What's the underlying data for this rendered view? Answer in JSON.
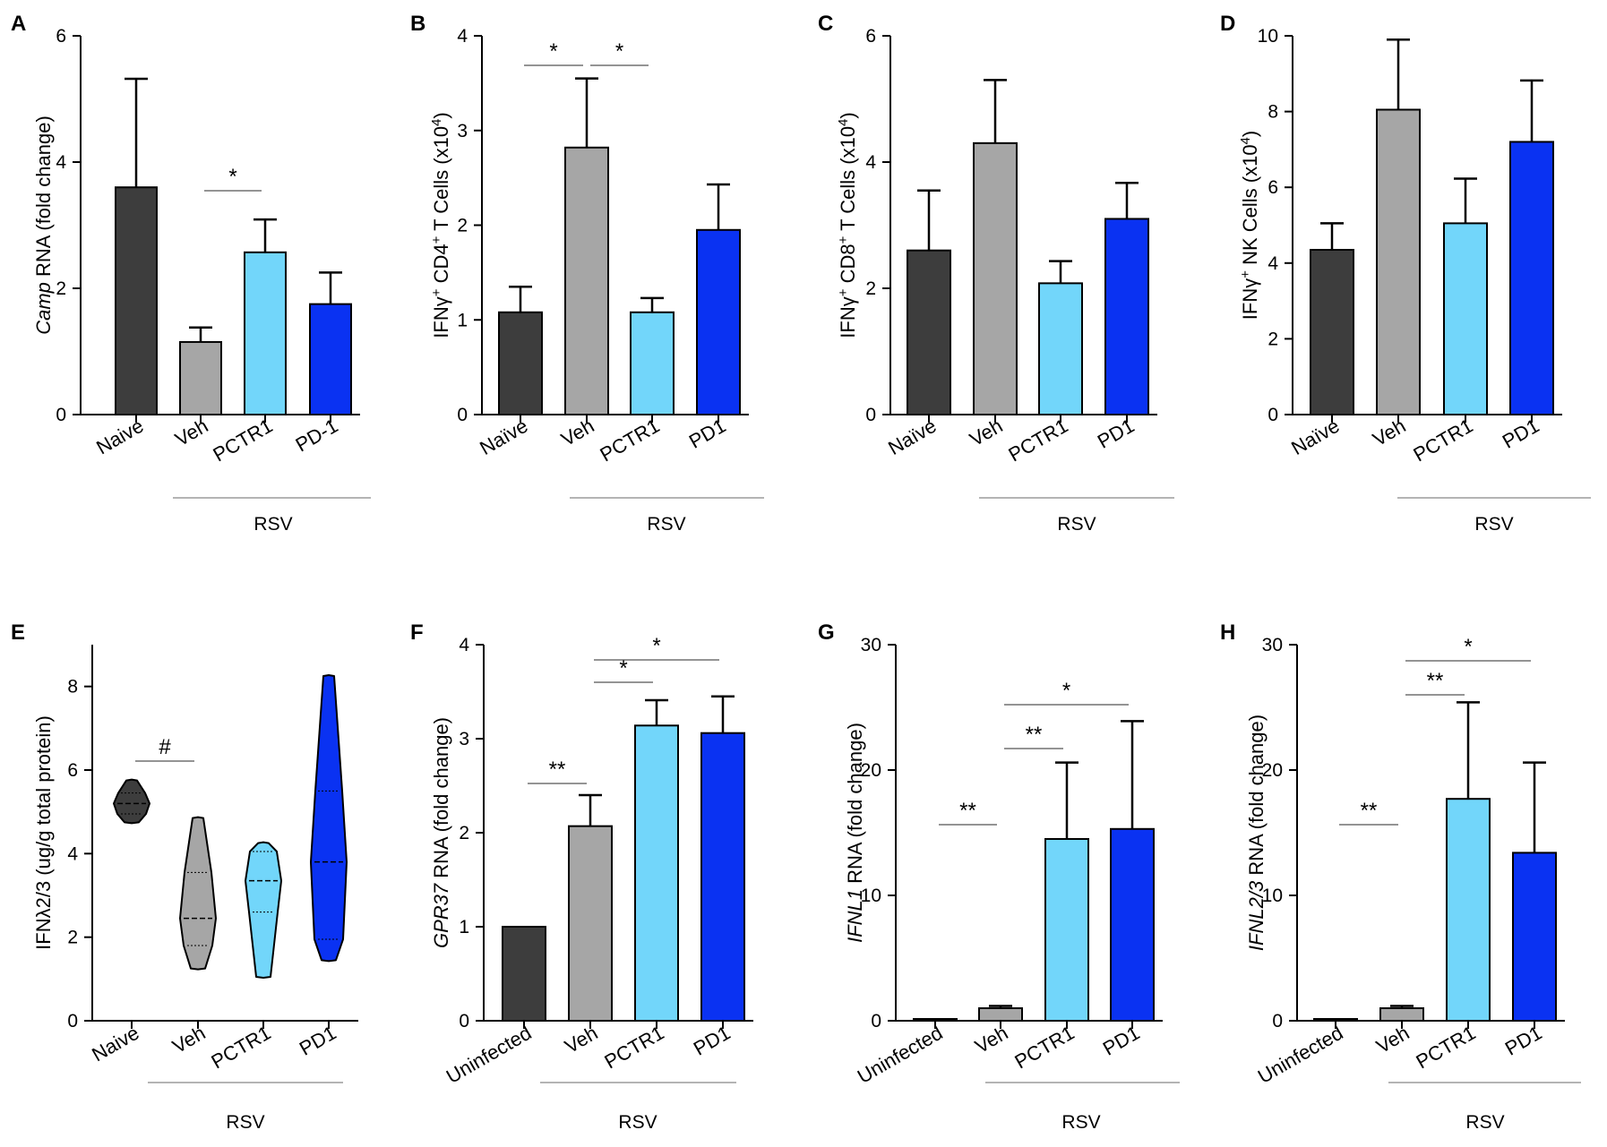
{
  "figure": {
    "colors": {
      "naive": "#3d3d3d",
      "veh": "#a6a6a6",
      "pctr1": "#72d6fa",
      "pd1": "#0a32f2"
    }
  },
  "chart_data": [
    {
      "panel": "A",
      "type": "bar",
      "ylabel_italic": "Camp",
      "ylabel_rest": " RNA (fold change)",
      "ylim": [
        0,
        6
      ],
      "yticks": [
        "0",
        "2",
        "4",
        "6"
      ],
      "categories": [
        "Naive",
        "Veh",
        "PCTR1",
        "PD-1"
      ],
      "values": [
        3.6,
        1.15,
        2.57,
        1.75
      ],
      "errors": [
        1.72,
        0.23,
        0.52,
        0.5
      ],
      "group_label": "RSV",
      "significance": [
        {
          "from": 1,
          "to": 2,
          "label": "*"
        }
      ]
    },
    {
      "panel": "B",
      "type": "bar",
      "ylabel_prefix": "IFNγ",
      "ylabel_sup1": "+",
      "ylabel_mid": " CD4",
      "ylabel_sup2": "+",
      "ylabel_end": " T Cells (x10",
      "ylabel_sup3": "4",
      "ylabel_close": ")",
      "ylim": [
        0,
        4
      ],
      "yticks": [
        "0",
        "1",
        "2",
        "3",
        "4"
      ],
      "categories": [
        "Naïve",
        "Veh",
        "PCTR1",
        "PD1"
      ],
      "values": [
        1.08,
        2.82,
        1.08,
        1.95
      ],
      "errors": [
        0.27,
        0.73,
        0.15,
        0.48
      ],
      "group_label": "RSV",
      "significance": [
        {
          "from": 0,
          "to": 1,
          "label": "*"
        },
        {
          "from": 1,
          "to": 2,
          "label": "*"
        }
      ]
    },
    {
      "panel": "C",
      "type": "bar",
      "ylabel_prefix": "IFNγ",
      "ylabel_sup1": "+",
      "ylabel_mid": " CD8",
      "ylabel_sup2": "+",
      "ylabel_end": " T Cells (x10",
      "ylabel_sup3": "4",
      "ylabel_close": ")",
      "ylim": [
        0,
        6
      ],
      "yticks": [
        "0",
        "2",
        "4",
        "6"
      ],
      "categories": [
        "Naïve",
        "Veh",
        "PCTR1",
        "PD1"
      ],
      "values": [
        2.6,
        4.3,
        2.08,
        3.1
      ],
      "errors": [
        0.95,
        1.0,
        0.35,
        0.57
      ],
      "group_label": "RSV",
      "significance": []
    },
    {
      "panel": "D",
      "type": "bar",
      "ylabel_prefix": "IFNγ",
      "ylabel_sup1": "+",
      "ylabel_mid": " NK Cells (x10",
      "ylabel_sup2": "4",
      "ylabel_end": ")",
      "ylim": [
        0,
        10
      ],
      "yticks": [
        "0",
        "2",
        "4",
        "6",
        "8",
        "10"
      ],
      "categories": [
        "Naïve",
        "Veh",
        "PCTR1",
        "PD1"
      ],
      "values": [
        4.35,
        8.05,
        5.05,
        7.2
      ],
      "errors": [
        0.7,
        1.85,
        1.18,
        1.62
      ],
      "group_label": "RSV",
      "significance": []
    },
    {
      "panel": "E",
      "type": "violin",
      "ylabel": "IFNλ2/3 (ug/g total protein)",
      "ylim": [
        0,
        9
      ],
      "yticks": [
        "0",
        "2",
        "4",
        "6",
        "8"
      ],
      "categories": [
        "Naive",
        "Veh",
        "PCTR1",
        "PD1"
      ],
      "violins": [
        {
          "min": 4.75,
          "max": 5.75,
          "q1": 4.95,
          "median": 5.2,
          "q3": 5.45
        },
        {
          "min": 1.25,
          "max": 4.85,
          "q1": 1.8,
          "median": 2.45,
          "q3": 3.55
        },
        {
          "min": 1.05,
          "max": 4.25,
          "q1": 2.6,
          "median": 3.35,
          "q3": 4.05
        },
        {
          "min": 1.45,
          "max": 8.25,
          "q1": 1.95,
          "median": 3.8,
          "q3": 5.5
        }
      ],
      "group_label": "RSV",
      "significance": [
        {
          "from": 0,
          "to": 1,
          "label": "#"
        }
      ]
    },
    {
      "panel": "F",
      "type": "bar",
      "ylabel_italic": "GPR37",
      "ylabel_rest": " RNA (fold change)",
      "ylim": [
        0,
        4
      ],
      "yticks": [
        "0",
        "1",
        "2",
        "3",
        "4"
      ],
      "categories": [
        "Uninfected",
        "Veh",
        "PCTR1",
        "PD1"
      ],
      "values": [
        1.0,
        2.07,
        3.14,
        3.06
      ],
      "errors": [
        0.0,
        0.33,
        0.27,
        0.39
      ],
      "group_label": "RSV",
      "significance": [
        {
          "from": 0,
          "to": 1,
          "label": "**"
        },
        {
          "from": 1,
          "to": 2,
          "label": "*"
        },
        {
          "from": 1,
          "to": 3,
          "label": "*"
        }
      ]
    },
    {
      "panel": "G",
      "type": "bar",
      "ylabel_italic": "IFNL1",
      "ylabel_rest": " RNA (fold change)",
      "ylim": [
        0,
        30
      ],
      "yticks": [
        "0",
        "10",
        "20",
        "30"
      ],
      "categories": [
        "Uninfected",
        "Veh",
        "PCTR1",
        "PD1"
      ],
      "values": [
        0.05,
        1.0,
        14.5,
        15.3
      ],
      "errors": [
        0.0,
        0.18,
        6.1,
        8.6
      ],
      "group_label": "RSV",
      "significance": [
        {
          "from": 0,
          "to": 1,
          "label": "**"
        },
        {
          "from": 1,
          "to": 2,
          "label": "**"
        },
        {
          "from": 1,
          "to": 3,
          "label": "*"
        }
      ]
    },
    {
      "panel": "H",
      "type": "bar",
      "ylabel_italic": "IFNL2/3",
      "ylabel_rest": " RNA (fold change)",
      "ylim": [
        0,
        30
      ],
      "yticks": [
        "0",
        "10",
        "20",
        "30"
      ],
      "categories": [
        "Uninfected",
        "Veh",
        "PCTR1",
        "PD1"
      ],
      "values": [
        0.05,
        1.0,
        17.7,
        13.4
      ],
      "errors": [
        0.0,
        0.18,
        7.7,
        7.2
      ],
      "group_label": "RSV",
      "significance": [
        {
          "from": 0,
          "to": 1,
          "label": "**"
        },
        {
          "from": 1,
          "to": 2,
          "label": "**"
        },
        {
          "from": 1,
          "to": 3,
          "label": "*"
        }
      ]
    }
  ]
}
